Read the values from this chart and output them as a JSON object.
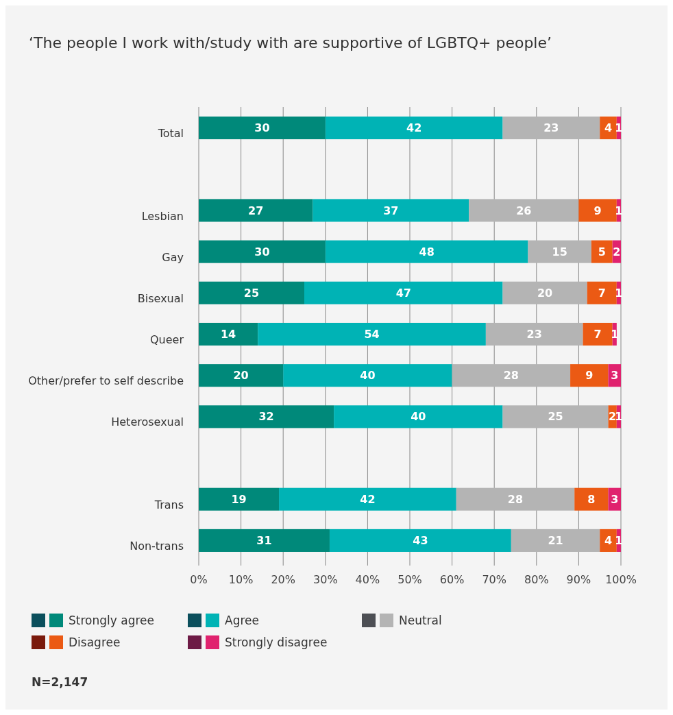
{
  "chart_data": {
    "type": "bar",
    "orientation": "horizontal",
    "stacked": true,
    "title": "‘The people I work with/study with are supportive of LGBTQ+ people’",
    "categories": [
      "Total",
      null,
      "Lesbian",
      "Gay",
      "Bisexual",
      "Queer",
      "Other/prefer to self describe",
      "Heterosexual",
      null,
      "Trans",
      "Non-trans"
    ],
    "series": [
      {
        "name": "Strongly agree",
        "color": "#00897a",
        "values": [
          30,
          null,
          27,
          30,
          25,
          14,
          20,
          32,
          null,
          19,
          31
        ]
      },
      {
        "name": "Agree",
        "color": "#00b3b5",
        "values": [
          42,
          null,
          37,
          48,
          47,
          54,
          40,
          40,
          null,
          42,
          43
        ]
      },
      {
        "name": "Neutral",
        "color": "#b4b4b4",
        "values": [
          23,
          null,
          26,
          15,
          20,
          23,
          28,
          25,
          null,
          28,
          21
        ]
      },
      {
        "name": "Disagree",
        "color": "#eb5a14",
        "values": [
          4,
          null,
          9,
          5,
          7,
          7,
          9,
          2,
          null,
          8,
          4
        ]
      },
      {
        "name": "Strongly disagree",
        "color": "#e0226e",
        "values": [
          1,
          null,
          1,
          2,
          1,
          1,
          3,
          1,
          null,
          3,
          1
        ]
      }
    ],
    "xlim": [
      0,
      100
    ],
    "xticks": [
      {
        "value": 0,
        "label": "0%"
      },
      {
        "value": 10,
        "label": "10%"
      },
      {
        "value": 20,
        "label": "20%"
      },
      {
        "value": 30,
        "label": "30%"
      },
      {
        "value": 40,
        "label": "40%"
      },
      {
        "value": 50,
        "label": "50%"
      },
      {
        "value": 60,
        "label": "60%"
      },
      {
        "value": 70,
        "label": "70%"
      },
      {
        "value": 80,
        "label": "80%"
      },
      {
        "value": 90,
        "label": "90%"
      },
      {
        "value": 100,
        "label": "100%"
      }
    ],
    "grid": "x",
    "legend": "bottom",
    "data_labels": true,
    "annotations": [
      "N=2,147"
    ]
  }
}
